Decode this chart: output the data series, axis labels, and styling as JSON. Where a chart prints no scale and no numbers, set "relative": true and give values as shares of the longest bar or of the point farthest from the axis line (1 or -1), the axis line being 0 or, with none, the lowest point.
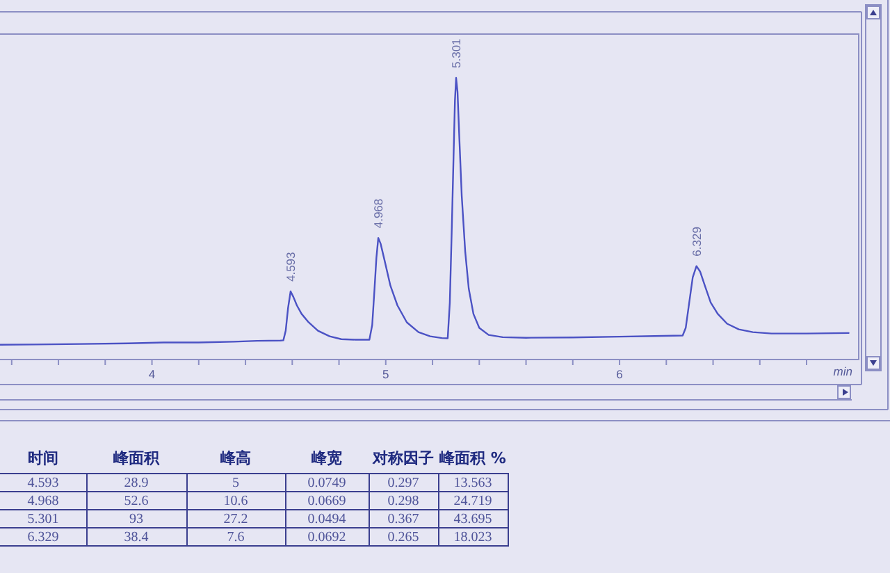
{
  "chart_data": [
    {
      "type": "line",
      "xlabel": "min",
      "relative": true,
      "color": "#4b52c4",
      "x": [
        3.35,
        3.5,
        3.7,
        3.9,
        4.05,
        4.2,
        4.35,
        4.45,
        4.55,
        4.562,
        4.572,
        4.582,
        4.593,
        4.605,
        4.62,
        4.64,
        4.67,
        4.71,
        4.76,
        4.81,
        4.87,
        4.93,
        4.942,
        4.952,
        4.96,
        4.968,
        4.978,
        4.995,
        5.02,
        5.05,
        5.09,
        5.14,
        5.19,
        5.24,
        5.265,
        5.274,
        5.282,
        5.29,
        5.296,
        5.301,
        5.307,
        5.315,
        5.325,
        5.34,
        5.355,
        5.375,
        5.4,
        5.44,
        5.5,
        5.6,
        5.8,
        6.0,
        6.15,
        6.27,
        6.283,
        6.298,
        6.313,
        6.329,
        6.345,
        6.365,
        6.39,
        6.42,
        6.46,
        6.51,
        6.57,
        6.65,
        6.8,
        6.98
      ],
      "values": [
        0.05,
        0.051,
        0.053,
        0.055,
        0.058,
        0.058,
        0.061,
        0.064,
        0.065,
        0.066,
        0.1,
        0.18,
        0.24,
        0.22,
        0.19,
        0.16,
        0.13,
        0.1,
        0.08,
        0.07,
        0.068,
        0.068,
        0.12,
        0.25,
        0.36,
        0.43,
        0.41,
        0.35,
        0.26,
        0.19,
        0.13,
        0.095,
        0.08,
        0.074,
        0.073,
        0.2,
        0.45,
        0.72,
        0.92,
        1.0,
        0.95,
        0.78,
        0.58,
        0.38,
        0.25,
        0.16,
        0.11,
        0.085,
        0.077,
        0.075,
        0.076,
        0.079,
        0.081,
        0.083,
        0.11,
        0.2,
        0.29,
        0.33,
        0.31,
        0.26,
        0.2,
        0.16,
        0.125,
        0.105,
        0.095,
        0.09,
        0.09,
        0.092
      ],
      "xlim": [
        3.35,
        7.02
      ],
      "xticks": [
        {
          "value": 3.4,
          "label": null
        },
        {
          "value": 3.6,
          "label": null
        },
        {
          "value": 3.8,
          "label": null
        },
        4,
        {
          "value": 4.2,
          "label": null
        },
        {
          "value": 4.4,
          "label": null
        },
        {
          "value": 4.6,
          "label": null
        },
        {
          "value": 4.8,
          "label": null
        },
        5,
        {
          "value": 5.2,
          "label": null
        },
        {
          "value": 5.4,
          "label": null
        },
        {
          "value": 5.6,
          "label": null
        },
        {
          "value": 5.8,
          "label": null
        },
        6,
        {
          "value": 6.2,
          "label": null
        },
        {
          "value": 6.4,
          "label": null
        },
        {
          "value": 6.6,
          "label": null
        },
        {
          "value": 6.8,
          "label": null
        }
      ],
      "annotations": [
        {
          "text": "4.593",
          "x": 4.593,
          "y": 0.24
        },
        {
          "text": "4.968",
          "x": 4.968,
          "y": 0.43
        },
        {
          "text": "5.301",
          "x": 5.301,
          "y": 1.0
        },
        {
          "text": "6.329",
          "x": 6.329,
          "y": 0.33
        }
      ]
    },
    {
      "type": "other",
      "categories": [
        "时间",
        "峰面积",
        "峰高",
        "峰宽",
        "对称因子",
        "峰面积 %"
      ],
      "annotations": [
        "4.593",
        "28.9",
        "5",
        "0.0749",
        "0.297",
        "13.563",
        "4.968",
        "52.6",
        "10.6",
        "0.0669",
        "0.298",
        "24.719",
        "5.301",
        "93",
        "27.2",
        "0.0494",
        "0.367",
        "43.695",
        "6.329",
        "38.4",
        "7.6",
        "0.0692",
        "0.265",
        "18.023"
      ]
    }
  ]
}
